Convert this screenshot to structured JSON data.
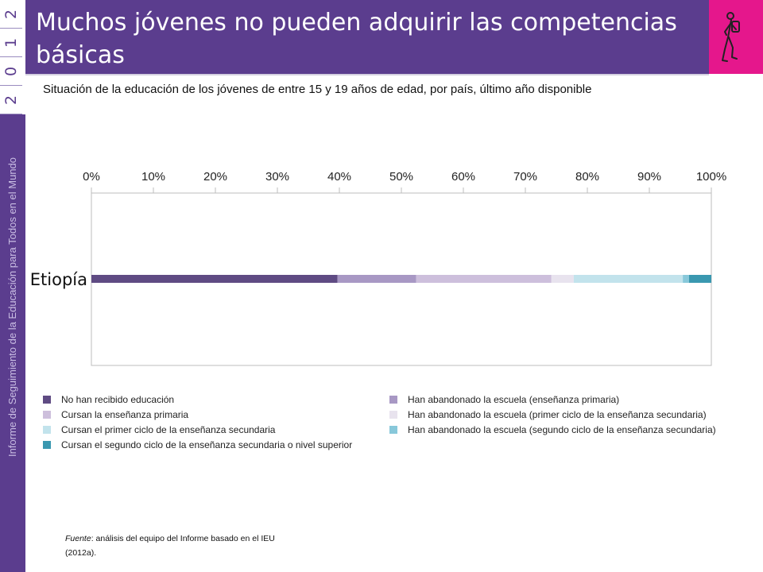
{
  "sidebar": {
    "year_digits": [
      "2",
      "1",
      "0",
      "2"
    ],
    "vertical_title": "Informe de Seguimiento de la Educación para Todos en el Mundo"
  },
  "header": {
    "title": "Muchos jóvenes no pueden adquirir las competencias básicas",
    "logo_icon": "hiker-icon"
  },
  "colors": {
    "header_purple": "#5b3d8e",
    "logo_magenta": "#e5178c"
  },
  "chart_data": {
    "type": "bar",
    "orientation": "horizontal",
    "stacked": true,
    "subtitle": "Situación de la educación de los jóvenes de entre 15 y 19 años de edad, por país, último año disponible",
    "categories": [
      "Etiopía"
    ],
    "xlim": [
      0,
      100
    ],
    "tick_labels": [
      "0%",
      "10%",
      "20%",
      "30%",
      "40%",
      "50%",
      "60%",
      "70%",
      "80%",
      "90%",
      "100%"
    ],
    "tick_values": [
      0,
      10,
      20,
      30,
      40,
      50,
      60,
      70,
      80,
      90,
      100
    ],
    "grid": false,
    "legend_position": "bottom",
    "series": [
      {
        "name": "No han recibido educación",
        "color": "#5f4b83",
        "values": [
          39.7
        ]
      },
      {
        "name": "Han abandonado la escuela (enseñanza primaria)",
        "color": "#a898c4",
        "values": [
          12.7
        ]
      },
      {
        "name": "Cursan la enseñanza primaria",
        "color": "#cdbfdc",
        "values": [
          21.8
        ]
      },
      {
        "name": "Han abandonado la escuela (primer ciclo de la enseñanza secundaria)",
        "color": "#e8e3ee",
        "values": [
          3.6
        ]
      },
      {
        "name": "Cursan el primer ciclo de la enseñanza secundaria",
        "color": "#c2e3ec",
        "values": [
          17.6
        ]
      },
      {
        "name": "Han abandonado la escuela (segundo ciclo de la enseñanza secundaria)",
        "color": "#88c8da",
        "values": [
          1.0
        ]
      },
      {
        "name": "Cursan el segundo ciclo de la enseñanza secundaria o nivel superior",
        "color": "#3a98b0",
        "values": [
          3.6
        ]
      }
    ]
  },
  "legend_order": [
    0,
    2,
    4,
    6,
    1,
    3,
    5
  ],
  "source": {
    "label": "Fuente",
    "text": ": análisis del equipo del Informe basado en el IEU (2012a)."
  }
}
